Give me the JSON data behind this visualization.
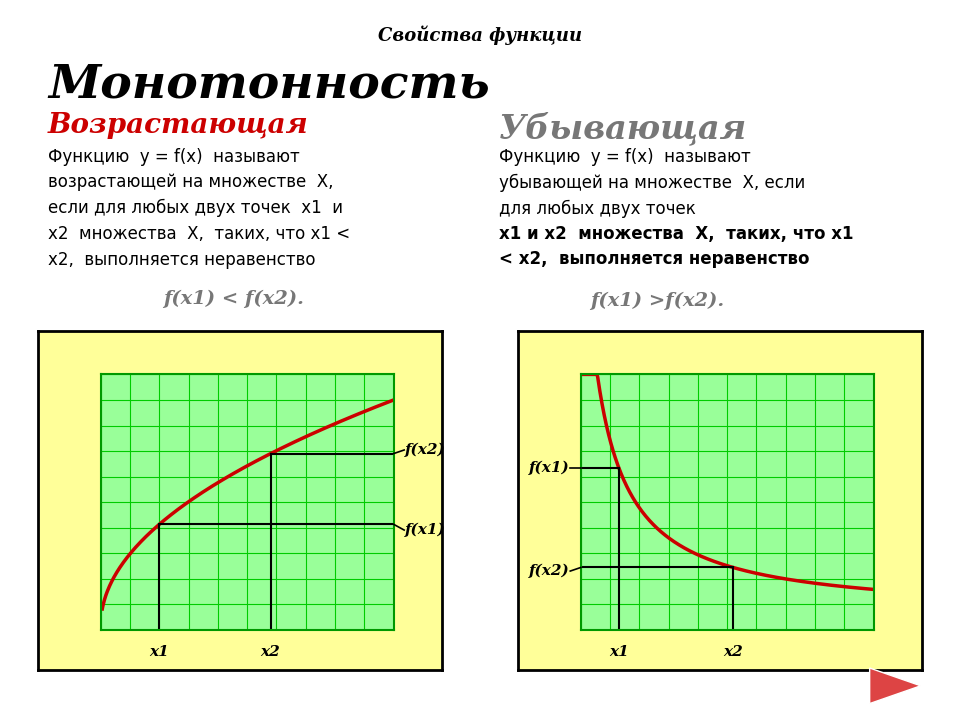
{
  "title_top": "Свойства функции",
  "title_main": "Монотонность",
  "left_heading": "Возрастающая",
  "right_heading": "Убывающая",
  "left_text": "Функцию  y = f(x)  называют\nвозрастающей на множестве  X,\nесли для любых двух точек  x1  и\nx2  множества  X,  таких, что x1 <\nx2,  выполняется неравенство",
  "left_formula": "f(x1) < f(x2).",
  "right_text1": "Функцию  y = f(x)  называют\nубывающей на множестве  X, если\nдля любых двух точек",
  "right_text2": "x1 и x2  множества  X,  таких, что x1\n< x2,  выполняется неравенство",
  "right_formula": "f(x1) >f(x2).",
  "bg_color": "#ffffff",
  "plot_bg_outer": "#ffff99",
  "plot_bg_inner": "#99ff99",
  "grid_color": "#00cc00",
  "curve_color": "#cc0000",
  "left_heading_color": "#cc0000",
  "right_heading_color": "#777777",
  "title_main_color": "#000000",
  "formula_color": "#777777",
  "text_color": "#000000"
}
